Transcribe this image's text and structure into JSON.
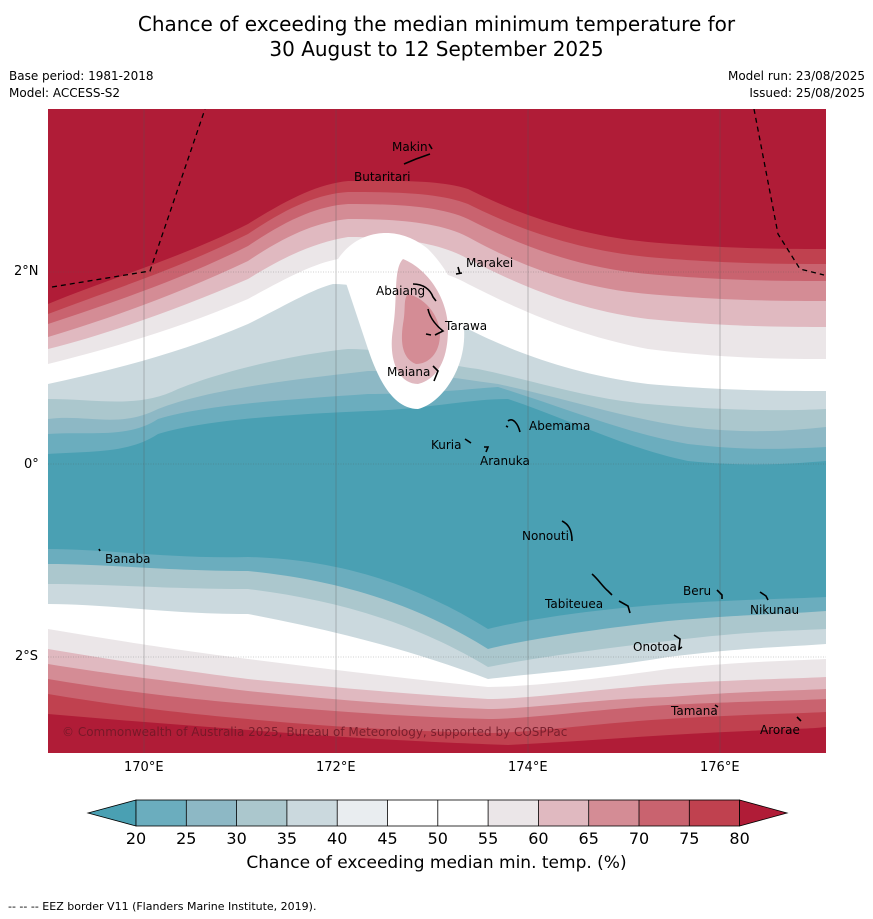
{
  "header": {
    "title_line1": "Chance of exceeding the median minimum temperature for",
    "title_line2": "30 August to 12 September 2025",
    "base_period": "Base period: 1981-2018",
    "model": "Model: ACCESS-S2",
    "model_run": "Model run: 23/08/2025",
    "issued": "Issued: 25/08/2025"
  },
  "map": {
    "lon_labels": [
      "170°E",
      "172°E",
      "174°E",
      "176°E"
    ],
    "lat_labels": [
      "2°N",
      "0°",
      "2°S"
    ],
    "islands": [
      "Makin",
      "Butaritari",
      "Marakei",
      "Abaiang",
      "Tarawa",
      "Maiana",
      "Abemama",
      "Kuria",
      "Aranuka",
      "Nonouti",
      "Banaba",
      "Tabiteuea",
      "Beru",
      "Nikunau",
      "Onotoa",
      "Tamana",
      "Arorae"
    ],
    "copyright": "© Commonwealth of Australia 2025, Bureau of Meteorology, supported by COSPPac"
  },
  "colorbar": {
    "ticks": [
      "20",
      "25",
      "30",
      "35",
      "40",
      "45",
      "50",
      "55",
      "60",
      "65",
      "70",
      "75",
      "80"
    ],
    "colors": [
      "#4aa0b3",
      "#6badbe",
      "#8db8c5",
      "#abc7cd",
      "#cbd9de",
      "#e9edf0",
      "#ffffff",
      "#ffffff",
      "#ebe6e8",
      "#e0b9c0",
      "#d48c95",
      "#c9636f",
      "#c0414f",
      "#b01c37"
    ],
    "title": "Chance of exceeding median min. temp. (%)"
  },
  "footnote": "-- -- -- EEZ border V11 (Flanders Marine Institute, 2019)."
}
